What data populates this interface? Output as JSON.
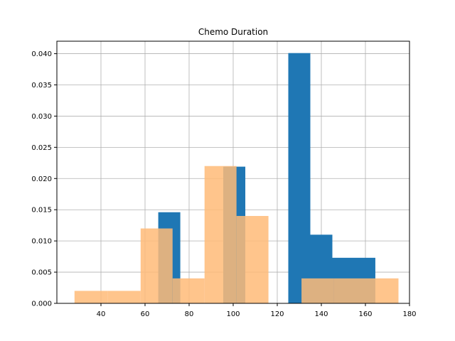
{
  "chart_data": {
    "type": "histogram",
    "title": "Chemo Duration",
    "xlabel": "",
    "ylabel": "",
    "xlim": [
      20,
      180
    ],
    "ylim": [
      0,
      0.042
    ],
    "xticks": [
      40,
      60,
      80,
      100,
      120,
      140,
      160,
      180
    ],
    "yticks": [
      0.0,
      0.005,
      0.01,
      0.015,
      0.02,
      0.025,
      0.03,
      0.035,
      0.04
    ],
    "ytick_labels": [
      "0.000",
      "0.005",
      "0.010",
      "0.015",
      "0.020",
      "0.025",
      "0.030",
      "0.035",
      "0.040"
    ],
    "grid": true,
    "series": [
      {
        "color": "#1f77b4",
        "opacity": 1.0,
        "bins": [
          {
            "x0": 66,
            "x1": 76,
            "value": 0.0146
          },
          {
            "x0": 76,
            "x1": 85.5,
            "value": 0.0
          },
          {
            "x0": 85.5,
            "x1": 95.5,
            "value": 0.0
          },
          {
            "x0": 95.5,
            "x1": 105.5,
            "value": 0.0219
          },
          {
            "x0": 105.5,
            "x1": 115.5,
            "value": 0.0
          },
          {
            "x0": 115.5,
            "x1": 125,
            "value": 0.0
          },
          {
            "x0": 125,
            "x1": 135,
            "value": 0.0401
          },
          {
            "x0": 135,
            "x1": 145,
            "value": 0.011
          },
          {
            "x0": 145,
            "x1": 155,
            "value": 0.0073
          },
          {
            "x0": 155,
            "x1": 164.5,
            "value": 0.0073
          }
        ]
      },
      {
        "color": "#ffbb78",
        "opacity": 0.85,
        "bins": [
          {
            "x0": 28,
            "x1": 43,
            "value": 0.002
          },
          {
            "x0": 43,
            "x1": 58,
            "value": 0.002
          },
          {
            "x0": 58,
            "x1": 72.5,
            "value": 0.012
          },
          {
            "x0": 72.5,
            "x1": 87,
            "value": 0.004
          },
          {
            "x0": 87,
            "x1": 101.5,
            "value": 0.022
          },
          {
            "x0": 101.5,
            "x1": 116,
            "value": 0.014
          },
          {
            "x0": 116,
            "x1": 131,
            "value": 0.0
          },
          {
            "x0": 131,
            "x1": 145.5,
            "value": 0.004
          },
          {
            "x0": 145.5,
            "x1": 160,
            "value": 0.004
          },
          {
            "x0": 160,
            "x1": 175,
            "value": 0.004
          }
        ]
      }
    ]
  }
}
